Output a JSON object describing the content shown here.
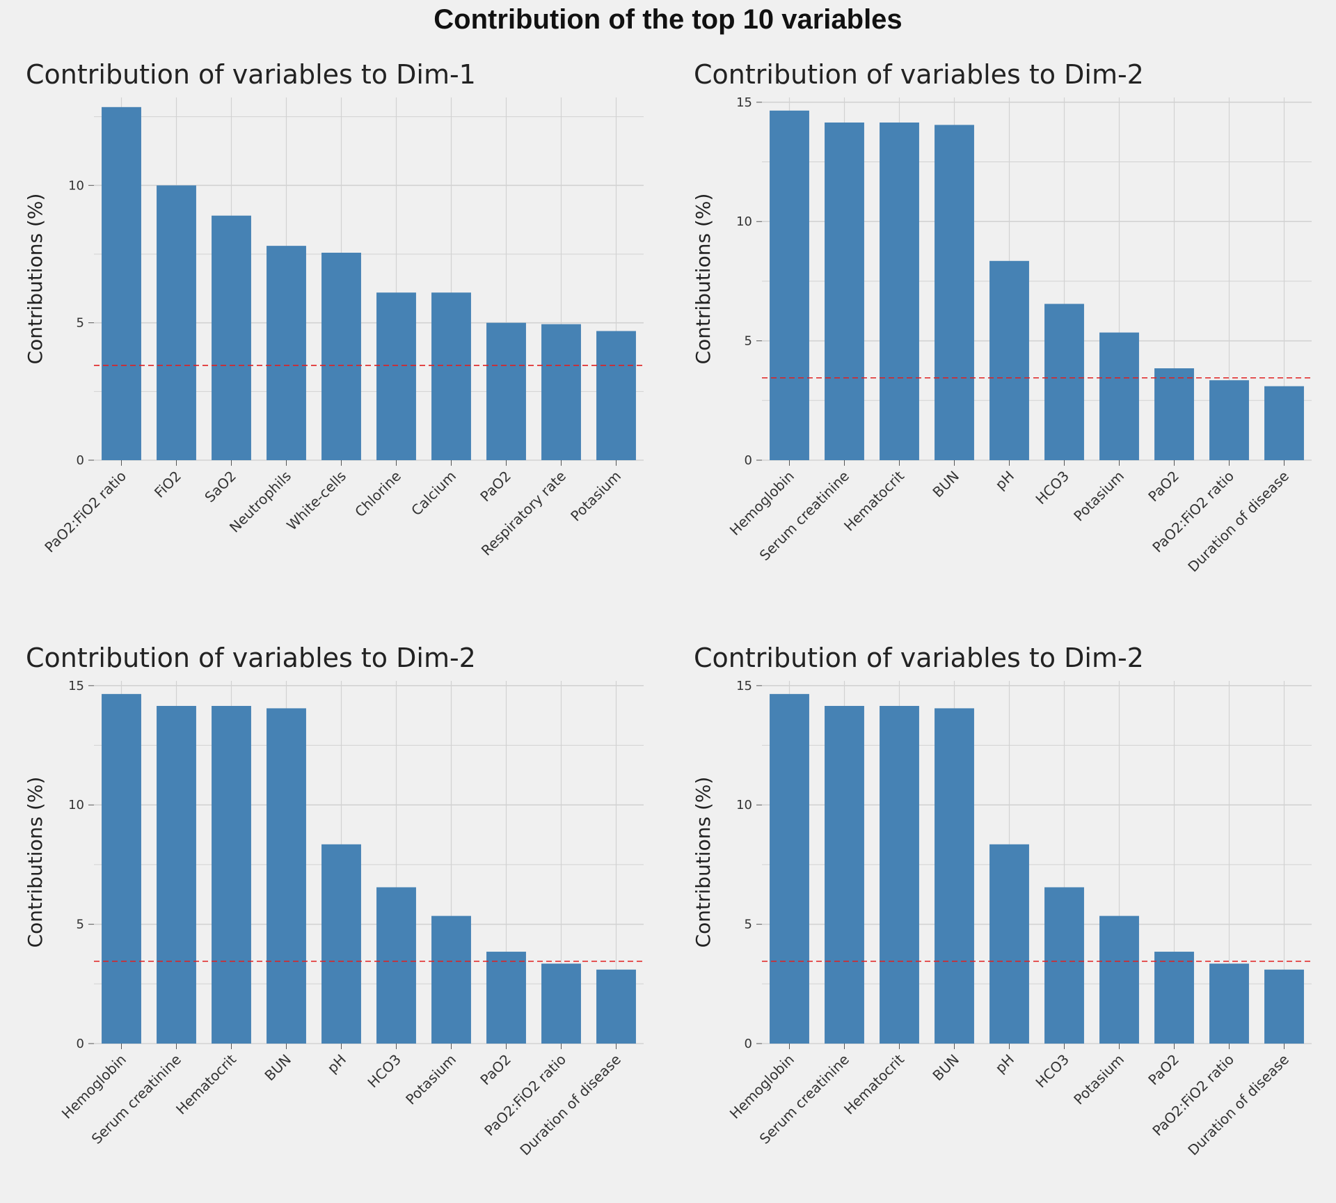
{
  "page": {
    "title": "Contribution of the top 10 variables"
  },
  "colors": {
    "background": "#f0f0f0",
    "bar": "#4682b4",
    "grid": "#d2d2d2",
    "reference_line": "#e02020"
  },
  "chart_data": [
    {
      "type": "bar",
      "title": "Contribution of variables to Dim-1",
      "xlabel": "",
      "ylabel": "Contributions (%)",
      "categories": [
        "PaO2:FiO2 ratio",
        "FiO2",
        "SaO2",
        "Neutrophils",
        "White-cells",
        "Chlorine",
        "Calcium",
        "PaO2",
        "Respiratory rate",
        "Potasium"
      ],
      "values": [
        12.85,
        10.0,
        8.9,
        7.8,
        7.55,
        6.1,
        6.1,
        5.0,
        4.95,
        4.7
      ],
      "yticks": [
        0,
        5,
        10
      ],
      "ylim": [
        0,
        13.2
      ],
      "reference_line": 3.45,
      "grid": true
    },
    {
      "type": "bar",
      "title": "Contribution of variables to Dim-2",
      "xlabel": "",
      "ylabel": "Contributions (%)",
      "categories": [
        "Hemoglobin",
        "Serum creatinine",
        "Hematocrit",
        "BUN",
        "pH",
        "HCO3",
        "Potasium",
        "PaO2",
        "PaO2:FiO2 ratio",
        "Duration of disease"
      ],
      "values": [
        14.65,
        14.15,
        14.15,
        14.05,
        8.35,
        6.55,
        5.35,
        3.85,
        3.35,
        3.1
      ],
      "yticks": [
        0,
        5,
        10,
        15
      ],
      "ylim": [
        0,
        15.2
      ],
      "reference_line": 3.45,
      "grid": true
    },
    {
      "type": "bar",
      "title": "Contribution of variables to Dim-2",
      "xlabel": "",
      "ylabel": "Contributions (%)",
      "categories": [
        "Hemoglobin",
        "Serum creatinine",
        "Hematocrit",
        "BUN",
        "pH",
        "HCO3",
        "Potasium",
        "PaO2",
        "PaO2:FiO2 ratio",
        "Duration of disease"
      ],
      "values": [
        14.65,
        14.15,
        14.15,
        14.05,
        8.35,
        6.55,
        5.35,
        3.85,
        3.35,
        3.1
      ],
      "yticks": [
        0,
        5,
        10,
        15
      ],
      "ylim": [
        0,
        15.2
      ],
      "reference_line": 3.45,
      "grid": true
    },
    {
      "type": "bar",
      "title": "Contribution of variables to Dim-2",
      "xlabel": "",
      "ylabel": "Contributions (%)",
      "categories": [
        "Hemoglobin",
        "Serum creatinine",
        "Hematocrit",
        "BUN",
        "pH",
        "HCO3",
        "Potasium",
        "PaO2",
        "PaO2:FiO2 ratio",
        "Duration of disease"
      ],
      "values": [
        14.65,
        14.15,
        14.15,
        14.05,
        8.35,
        6.55,
        5.35,
        3.85,
        3.35,
        3.1
      ],
      "yticks": [
        0,
        5,
        10,
        15
      ],
      "ylim": [
        0,
        15.2
      ],
      "reference_line": 3.45,
      "grid": true
    }
  ]
}
